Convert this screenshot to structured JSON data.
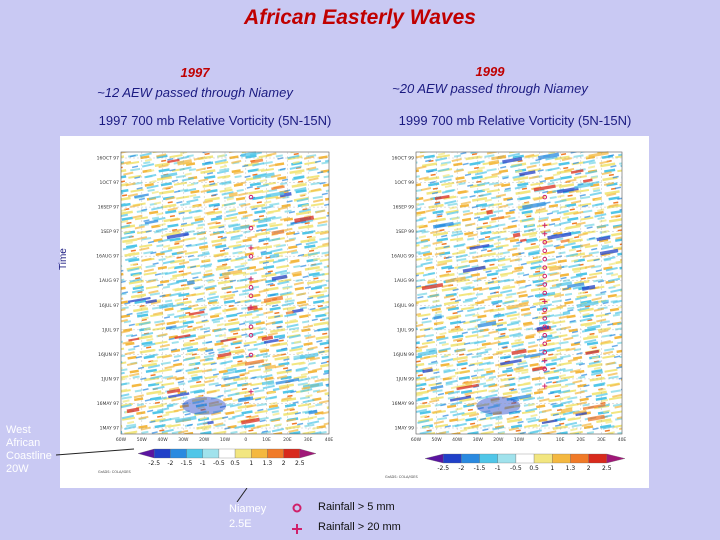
{
  "title": "African Easterly Waves",
  "left": {
    "year": "1997",
    "subtitle": "~12 AEW passed through Niamey",
    "panel_title": "1997 700 mb Relative Vorticity (5N-15N)",
    "time_ticks": [
      "16OCT 97",
      "1OCT 97",
      "16SEP 97",
      "1SEP 97",
      "16AUG 97",
      "1AUG 97",
      "16JUL 97",
      "1JUL 97",
      "16JUN 97",
      "1JUN 97",
      "16MAY 97",
      "1MAY 97"
    ],
    "lon_ticks": [
      "60W",
      "50W",
      "40W",
      "30W",
      "20W",
      "10W",
      "0",
      "10E",
      "20E",
      "30E",
      "40E"
    ],
    "markers": [
      {
        "frac": 0.16,
        "type": "circle"
      },
      {
        "frac": 0.27,
        "type": "circle"
      },
      {
        "frac": 0.34,
        "type": "plus"
      },
      {
        "frac": 0.37,
        "type": "circle"
      },
      {
        "frac": 0.45,
        "type": "plus"
      },
      {
        "frac": 0.48,
        "type": "circle"
      },
      {
        "frac": 0.51,
        "type": "circle"
      },
      {
        "frac": 0.55,
        "type": "plus"
      },
      {
        "frac": 0.62,
        "type": "circle"
      },
      {
        "frac": 0.65,
        "type": "circle"
      },
      {
        "frac": 0.72,
        "type": "circle"
      },
      {
        "frac": 0.85,
        "type": "plus"
      }
    ]
  },
  "right": {
    "year": "1999",
    "subtitle": "~20 AEW passed through Niamey",
    "panel_title": "1999 700 mb Relative Vorticity (5N-15N)",
    "time_ticks": [
      "16OCT 99",
      "1OCT 99",
      "16SEP 99",
      "1SEP 99",
      "16AUG 99",
      "1AUG 99",
      "16JUL 99",
      "1JUL 99",
      "16JUN 99",
      "1JUN 99",
      "16MAY 99",
      "1MAY 99"
    ],
    "lon_ticks": [
      "60W",
      "50W",
      "40W",
      "30W",
      "20W",
      "10W",
      "0",
      "10E",
      "20E",
      "30E",
      "40E"
    ],
    "markers": [
      {
        "frac": 0.16,
        "type": "circle"
      },
      {
        "frac": 0.26,
        "type": "plus"
      },
      {
        "frac": 0.29,
        "type": "plus"
      },
      {
        "frac": 0.32,
        "type": "circle"
      },
      {
        "frac": 0.35,
        "type": "circle"
      },
      {
        "frac": 0.38,
        "type": "circle"
      },
      {
        "frac": 0.41,
        "type": "circle"
      },
      {
        "frac": 0.44,
        "type": "circle"
      },
      {
        "frac": 0.47,
        "type": "circle"
      },
      {
        "frac": 0.5,
        "type": "circle"
      },
      {
        "frac": 0.53,
        "type": "plus"
      },
      {
        "frac": 0.56,
        "type": "circle"
      },
      {
        "frac": 0.59,
        "type": "circle"
      },
      {
        "frac": 0.62,
        "type": "circle"
      },
      {
        "frac": 0.65,
        "type": "circle"
      },
      {
        "frac": 0.68,
        "type": "circle"
      },
      {
        "frac": 0.71,
        "type": "circle"
      },
      {
        "frac": 0.74,
        "type": "plus"
      },
      {
        "frac": 0.77,
        "type": "circle"
      },
      {
        "frac": 0.83,
        "type": "plus"
      }
    ]
  },
  "colorbar": {
    "ticks": [
      "-2.5",
      "-2",
      "-1.5",
      "-1",
      "-0.5",
      "0.5",
      "1",
      "1.3",
      "2",
      "2.5"
    ],
    "colors": [
      "#5a14a0",
      "#2040c8",
      "#2a8ae0",
      "#50c6e8",
      "#a0e2ec",
      "#ffffff",
      "#f2e680",
      "#f4b840",
      "#f07a28",
      "#d82a1c",
      "#a01878"
    ]
  },
  "credit": "GrADS: COLA/IGES",
  "time_label": "Time",
  "west_label": "West African Coastline 20W",
  "niamey_label": [
    "Niamey",
    "2.5E"
  ],
  "legend": {
    "circle_label": "Rainfall >  5 mm",
    "plus_label": "Rainfall > 20 mm"
  },
  "colors": {
    "title": "#c00000",
    "subtitle": "#1a1a80",
    "background": "#c9c9f3",
    "marker": "#d0206a"
  }
}
